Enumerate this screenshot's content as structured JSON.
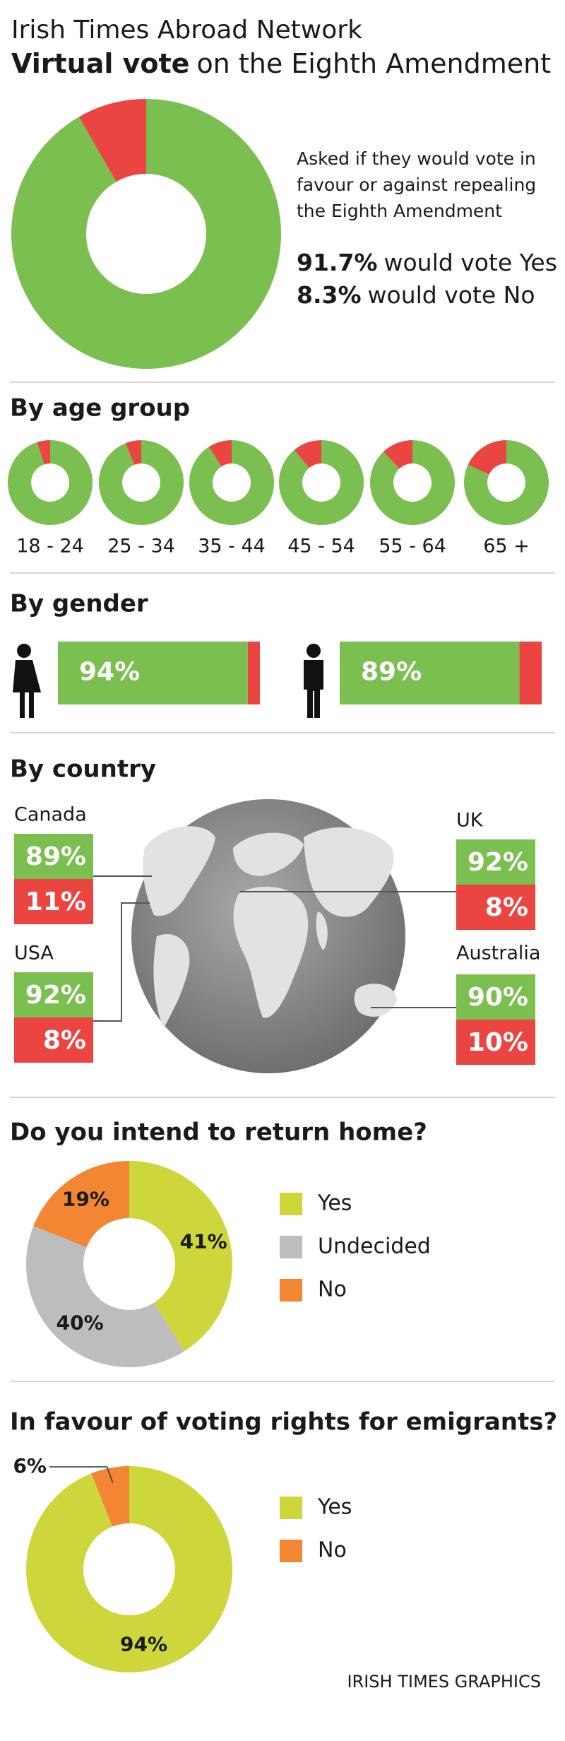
{
  "header": {
    "network": "Irish Times Abroad Network",
    "title_bold": "Virtual vote",
    "title_rest": "on the Eighth Amendment"
  },
  "chart_data": [
    {
      "type": "donut",
      "description": [
        "Asked if they would vote in",
        "favour or against repealing",
        "the Eighth Amendment"
      ],
      "categories": [
        "would vote Yes",
        "would vote No"
      ],
      "values": [
        91.7,
        8.3
      ],
      "value_labels": [
        "91.7%",
        "8.3%"
      ],
      "colors": [
        "#7abf4f",
        "#eb4542"
      ]
    },
    {
      "type": "donut-row",
      "title": "By age group",
      "categories": [
        "18 - 24",
        "25 - 34",
        "35 - 44",
        "45 - 54",
        "55 - 64",
        "65 +"
      ],
      "series": [
        {
          "color": "#7abf4f",
          "values": [
            95,
            94,
            91,
            89,
            88,
            82
          ]
        },
        {
          "color": "#eb4542",
          "values": [
            5,
            6,
            9,
            11,
            12,
            18
          ]
        }
      ]
    },
    {
      "type": "stacked-bar",
      "title": "By gender",
      "series": [
        {
          "color": "#7abf4f",
          "values": [
            94,
            89
          ],
          "value_labels": [
            "94%",
            "89%"
          ]
        },
        {
          "color": "#eb4542",
          "values": [
            6,
            11
          ]
        }
      ]
    },
    {
      "type": "country-boxes",
      "title": "By country",
      "categories": [
        "Canada",
        "USA",
        "UK",
        "Australia"
      ],
      "series": [
        {
          "color": "#7abf4f",
          "values": [
            89,
            92,
            92,
            90
          ],
          "value_labels": [
            "89%",
            "92%",
            "92%",
            "90%"
          ]
        },
        {
          "color": "#eb4542",
          "values": [
            11,
            8,
            8,
            10
          ],
          "value_labels": [
            "11%",
            "8%",
            "8%",
            "10%"
          ]
        }
      ]
    },
    {
      "type": "donut",
      "title": "Do you intend to return home?",
      "categories": [
        "Yes",
        "Undecided",
        "No"
      ],
      "values": [
        41,
        40,
        19
      ],
      "value_labels": [
        "41%",
        "40%",
        "19%"
      ],
      "colors": [
        "#cdd63a",
        "#bdbdbd",
        "#f28633"
      ]
    },
    {
      "type": "donut",
      "title": "In favour of voting rights for emigrants?",
      "categories": [
        "Yes",
        "No"
      ],
      "values": [
        94,
        6
      ],
      "value_labels": [
        "94%",
        "6%"
      ],
      "colors": [
        "#cdd63a",
        "#f28633"
      ]
    }
  ],
  "footer": "IRISH TIMES GRAPHICS"
}
